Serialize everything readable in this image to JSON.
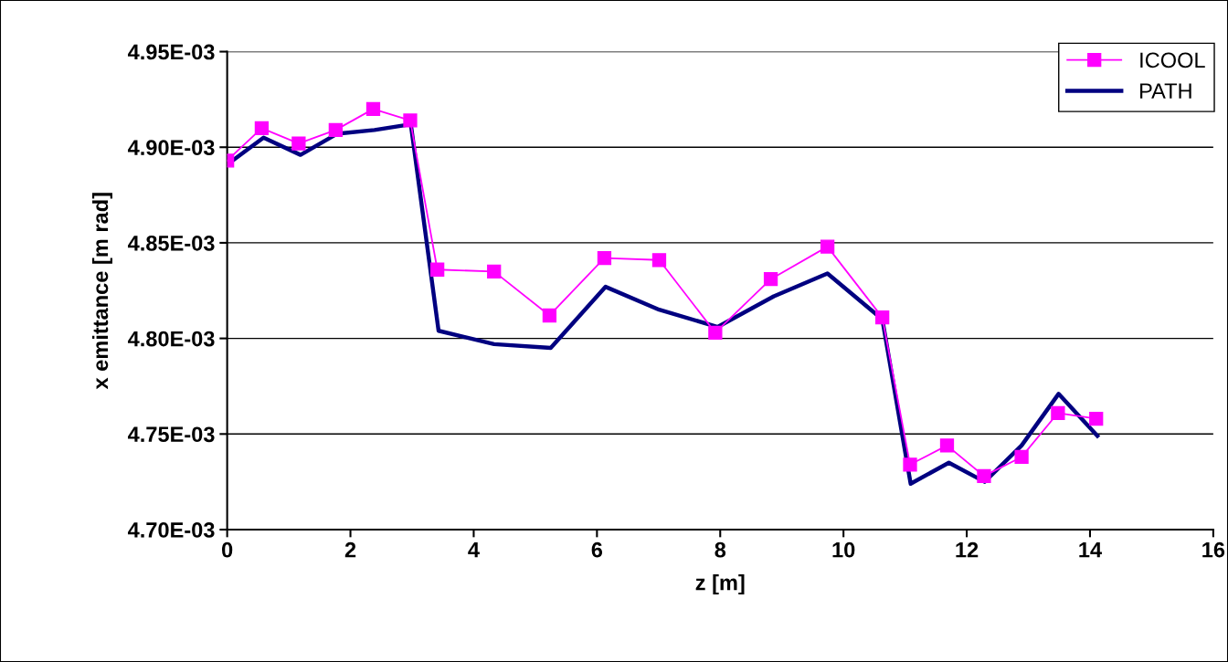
{
  "chart_data": {
    "type": "line",
    "xlabel": "z [m]",
    "ylabel": "x emittance [m rad]",
    "xlim": [
      0,
      16
    ],
    "xticks": [
      0,
      2,
      4,
      6,
      8,
      10,
      12,
      14,
      16
    ],
    "ylim": [
      0.0047,
      0.00495
    ],
    "yticks": [
      {
        "value": 0.0047,
        "label": "4.70E-03"
      },
      {
        "value": 0.00475,
        "label": "4.75E-03"
      },
      {
        "value": 0.0048,
        "label": "4.80E-03"
      },
      {
        "value": 0.00485,
        "label": "4.85E-03"
      },
      {
        "value": 0.0049,
        "label": "4.90E-03"
      },
      {
        "value": 0.00495,
        "label": "4.95E-03"
      }
    ],
    "grid": "y",
    "legend": "top right",
    "series": [
      {
        "name": "ICOOL",
        "color": "#ff00ff",
        "marker": "square",
        "x": [
          0,
          0.56,
          1.16,
          1.76,
          2.37,
          2.97,
          3.41,
          4.33,
          5.23,
          6.12,
          7.01,
          7.92,
          8.82,
          9.74,
          10.63,
          11.08,
          11.68,
          12.28,
          12.89,
          13.48,
          14.1
        ],
        "values": [
          0.004893,
          0.00491,
          0.004902,
          0.004909,
          0.00492,
          0.004914,
          0.004836,
          0.004835,
          0.004812,
          0.004842,
          0.004841,
          0.004803,
          0.004831,
          0.004848,
          0.004811,
          0.004734,
          0.004744,
          0.004728,
          0.004738,
          0.004761,
          0.004758
        ]
      },
      {
        "name": "PATH",
        "color": "#000080",
        "marker": "none",
        "x": [
          0,
          0.59,
          1.19,
          1.78,
          2.39,
          2.98,
          3.43,
          4.33,
          5.25,
          6.14,
          7.01,
          7.96,
          8.87,
          9.74,
          10.63,
          11.09,
          11.71,
          12.29,
          12.89,
          13.49,
          14.12
        ],
        "values": [
          0.004891,
          0.004905,
          0.004896,
          0.004907,
          0.004909,
          0.004912,
          0.004804,
          0.004797,
          0.004795,
          0.004827,
          0.004815,
          0.004806,
          0.004822,
          0.004834,
          0.00481,
          0.004724,
          0.004735,
          0.004725,
          0.004744,
          0.004771,
          0.004749
        ]
      }
    ]
  }
}
